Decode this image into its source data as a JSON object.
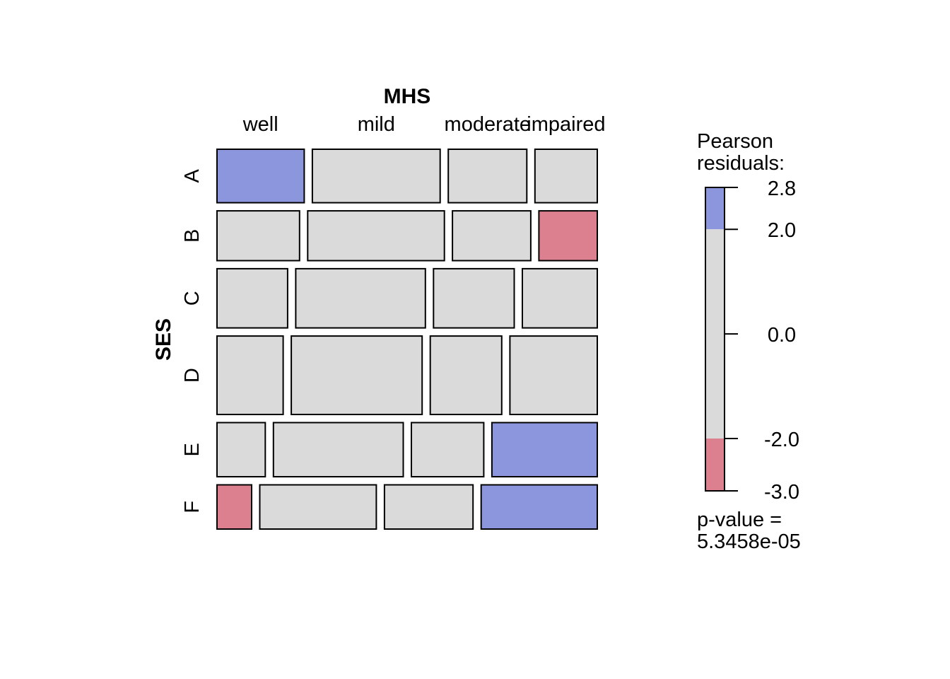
{
  "chart_data": {
    "type": "mosaic",
    "column_variable": "MHS",
    "row_variable": "SES",
    "columns": [
      "well",
      "mild",
      "moderate",
      "impaired"
    ],
    "rows": [
      "A",
      "B",
      "C",
      "D",
      "E",
      "F"
    ],
    "row_proportions": [
      0.1406,
      0.1309,
      0.1557,
      0.2063,
      0.1423,
      0.1162
    ],
    "cell_proportions": [
      [
        0.2295,
        0.3361,
        0.2066,
        0.1639
      ],
      [
        0.2172,
        0.3596,
        0.206,
        0.1536
      ],
      [
        0.1864,
        0.3422,
        0.213,
        0.1977
      ],
      [
        0.1752,
        0.3463,
        0.1892,
        0.2313
      ],
      [
        0.1278,
        0.344,
        0.1917,
        0.2792
      ],
      [
        0.091,
        0.3063,
        0.2328,
        0.3051
      ]
    ],
    "residual_bands": [
      [
        "pos",
        "neutral",
        "neutral",
        "neutral"
      ],
      [
        "neutral",
        "neutral",
        "neutral",
        "neg"
      ],
      [
        "neutral",
        "neutral",
        "neutral",
        "neutral"
      ],
      [
        "neutral",
        "neutral",
        "neutral",
        "neutral"
      ],
      [
        "neutral",
        "neutral",
        "neutral",
        "pos"
      ],
      [
        "neg",
        "neutral",
        "neutral",
        "pos"
      ]
    ],
    "legend": {
      "title_lines": [
        "Pearson",
        "residuals:"
      ],
      "ticks": [
        "2.8",
        "2.0",
        "0.0",
        "-2.0",
        "-3.0"
      ],
      "tick_values": [
        2.8,
        2.0,
        0.0,
        -2.0,
        -3.0
      ],
      "range": [
        -3.0,
        2.8
      ],
      "thresholds": [
        -2.0,
        2.0
      ],
      "pvalue_lines": [
        "p-value =",
        "5.3458e-05"
      ]
    },
    "colors": {
      "pos": "#8c96dc",
      "neg": "#dc8090",
      "neutral": "#dadada",
      "border": "#000000"
    }
  }
}
